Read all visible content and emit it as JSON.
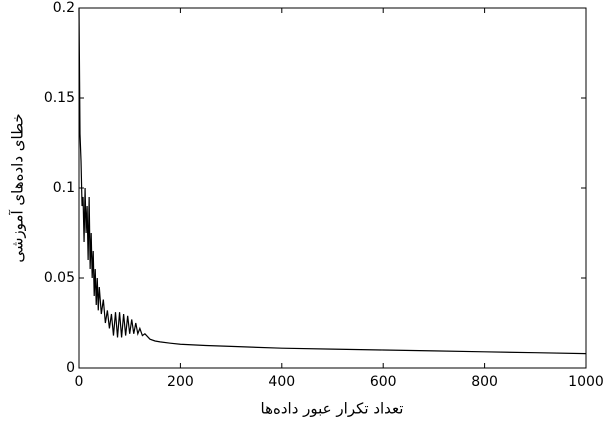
{
  "chart_data": {
    "type": "line",
    "xlabel": "تعداد تکرار عبور داده‌ها",
    "ylabel": "خطای داده‌های آموزشی",
    "x": [
      0,
      2,
      4,
      6,
      8,
      10,
      12,
      14,
      16,
      18,
      20,
      22,
      24,
      26,
      28,
      30,
      32,
      34,
      36,
      38,
      40,
      44,
      48,
      52,
      56,
      60,
      64,
      68,
      72,
      76,
      80,
      84,
      88,
      92,
      96,
      100,
      104,
      108,
      112,
      116,
      120,
      125,
      130,
      140,
      150,
      160,
      180,
      200,
      250,
      300,
      400,
      500,
      600,
      700,
      800,
      900,
      1000
    ],
    "series": [
      {
        "color": "#000000",
        "values": [
          0.2,
          0.13,
          0.115,
          0.09,
          0.095,
          0.07,
          0.1,
          0.075,
          0.09,
          0.06,
          0.095,
          0.055,
          0.075,
          0.05,
          0.065,
          0.04,
          0.055,
          0.035,
          0.05,
          0.032,
          0.045,
          0.03,
          0.038,
          0.025,
          0.032,
          0.022,
          0.03,
          0.018,
          0.031,
          0.017,
          0.031,
          0.017,
          0.03,
          0.018,
          0.029,
          0.019,
          0.027,
          0.019,
          0.025,
          0.019,
          0.022,
          0.018,
          0.019,
          0.016,
          0.015,
          0.0145,
          0.0138,
          0.0132,
          0.0125,
          0.012,
          0.011,
          0.0105,
          0.01,
          0.0095,
          0.009,
          0.0085,
          0.008
        ]
      }
    ],
    "xlim": [
      0,
      1000
    ],
    "xticks": [
      0,
      200,
      400,
      600,
      800,
      1000
    ],
    "ylim": [
      0,
      0.2
    ],
    "yticks": [
      0,
      0.05,
      0.1,
      0.15,
      0.2
    ]
  }
}
